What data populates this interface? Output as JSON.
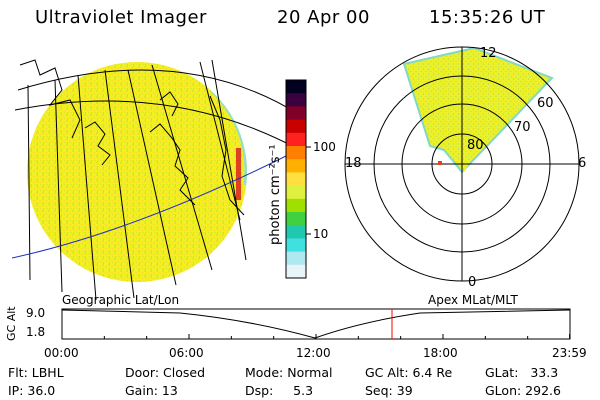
{
  "header": {
    "instrument": "Ultraviolet Imager",
    "date": "20 Apr 00",
    "time": "15:35:26 UT"
  },
  "colorbar": {
    "unit_label": "photon cm⁻²s⁻¹",
    "ticks": [
      "100",
      "10"
    ],
    "colors": [
      "#000020",
      "#3a0040",
      "#800028",
      "#c80000",
      "#ff2020",
      "#ff8000",
      "#ffb000",
      "#ffe040",
      "#e0f040",
      "#a0e000",
      "#40d040",
      "#20c8b0",
      "#40e0e0",
      "#b0e8f0",
      "#e8f4f8"
    ]
  },
  "polar": {
    "lat_labels": [
      "80",
      "70",
      "60"
    ],
    "mlt_labels": [
      "12",
      "18",
      "6",
      "0"
    ]
  },
  "timeline": {
    "left_title": "Geographic Lat/Lon",
    "right_title": "Apex MLat/MLT",
    "axis_label": "GC Alt",
    "y_ticks": [
      "9.0",
      "1.8"
    ],
    "x_ticks": [
      "00:00",
      "06:00",
      "12:00",
      "18:00",
      "23:59"
    ],
    "marker_time_hours": 15.59,
    "marker_color": "#ff0000"
  },
  "status": {
    "flt": "Flt: LBHL",
    "ip": "IP: 36.0",
    "door": "Door: Closed",
    "gain": "Gain: 13",
    "mode": "Mode: Normal",
    "dsp": "Dsp:     5.3",
    "gc_alt": "GC Alt: 6.4 Re",
    "seq": "Seq: 39",
    "glat": "GLat:   33.3",
    "glon": "GLon: 292.6"
  }
}
